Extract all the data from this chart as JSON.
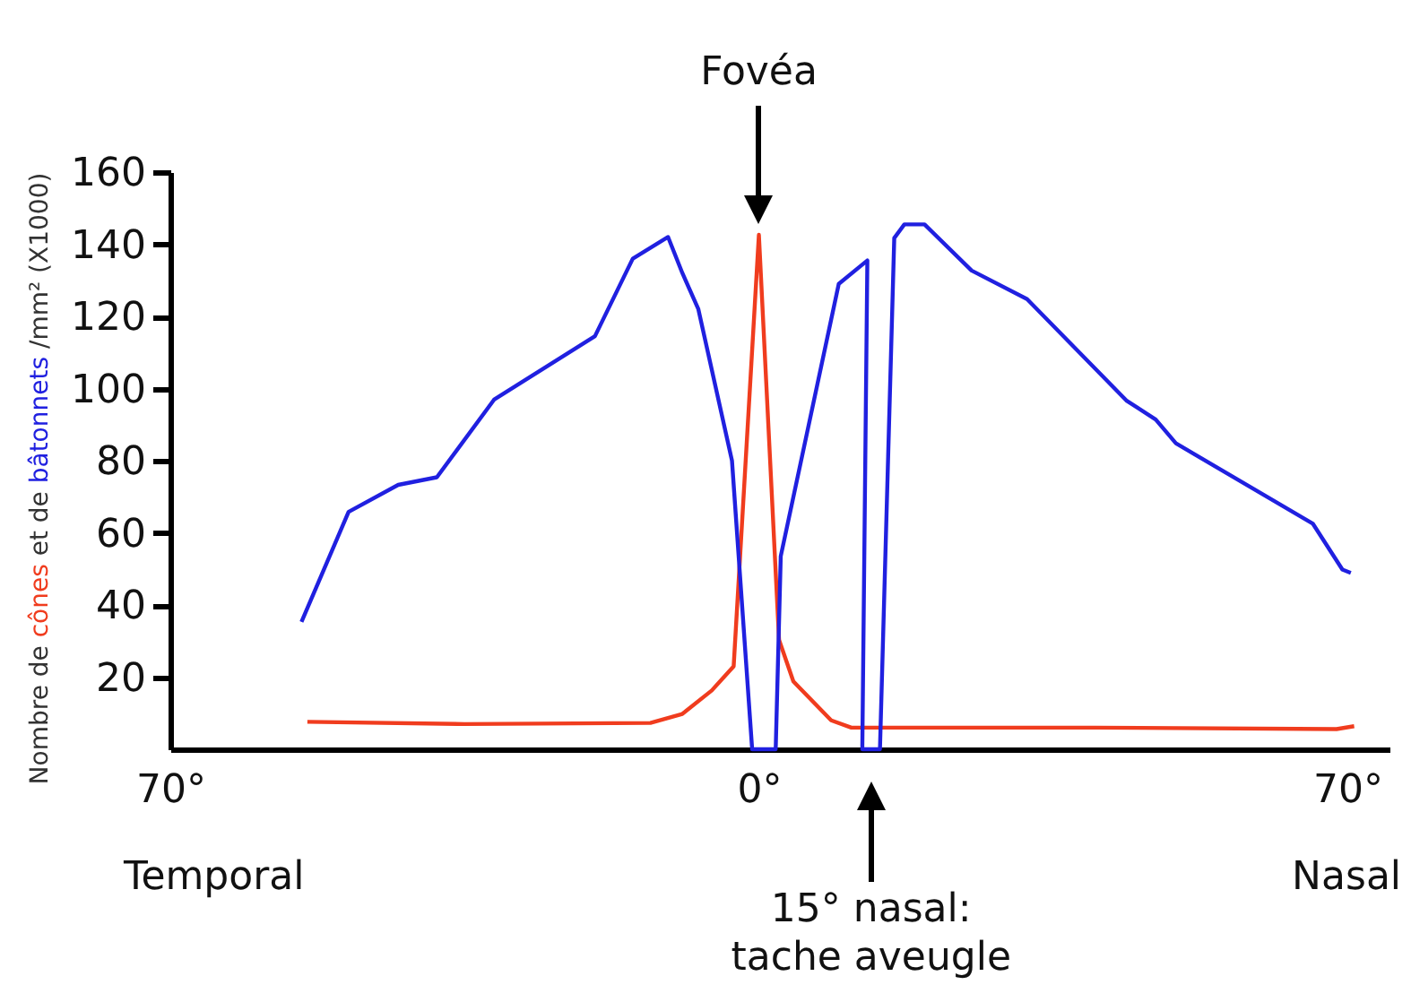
{
  "chart_data": {
    "type": "line",
    "ylabel": "Nombre de cônes et de bâtonnets /mm² (X1000)",
    "xlim": [
      -70,
      75
    ],
    "xticks": [
      {
        "value": -70,
        "label": "70°"
      },
      {
        "value": 0,
        "label": "0°"
      },
      {
        "value": 70,
        "label": "70°"
      }
    ],
    "ylim": [
      0,
      160
    ],
    "yticks": [
      20,
      40,
      60,
      80,
      100,
      120,
      140,
      160
    ],
    "grid": false,
    "marker": "none",
    "line_style": "solid",
    "series": [
      {
        "color": "#f03c1e",
        "x": [
          -53.7,
          -35,
          -12.9,
          -9.1,
          -5.6,
          -3,
          0,
          2.4,
          4.1,
          8.6,
          11,
          40,
          68.7,
          70.8
        ],
        "values": [
          7.6,
          7,
          7.3,
          9.8,
          16.3,
          23,
          142.6,
          30.3,
          18.8,
          8,
          6,
          6,
          5.6,
          6.4
        ]
      },
      {
        "color": "#2020e0",
        "x": [
          -54.4,
          -48.8,
          -42.9,
          -38.3,
          -31.5,
          -19.5,
          -15,
          -10.8,
          -9.1,
          -7.2,
          -3.2,
          -0.8,
          2,
          2.6,
          9.5,
          12.9,
          12.3,
          14.4,
          16.1,
          17.3,
          19.7,
          25.3,
          31.9,
          43.7,
          47.2,
          49.6,
          65.9,
          69.4,
          70.4
        ],
        "values": [
          35.3,
          65.8,
          73.3,
          75.4,
          96.9,
          114.5,
          136,
          142,
          132,
          122,
          80,
          0,
          0,
          53.5,
          129,
          135.5,
          0,
          0,
          141.7,
          145.5,
          145.5,
          132.7,
          124.8,
          96.7,
          91.4,
          84.8,
          62.5,
          49.8,
          48.9
        ]
      }
    ],
    "annotations": [
      "Fovéa",
      "15° nasal: tache aveugle",
      "Temporal",
      "Nasal"
    ]
  }
}
